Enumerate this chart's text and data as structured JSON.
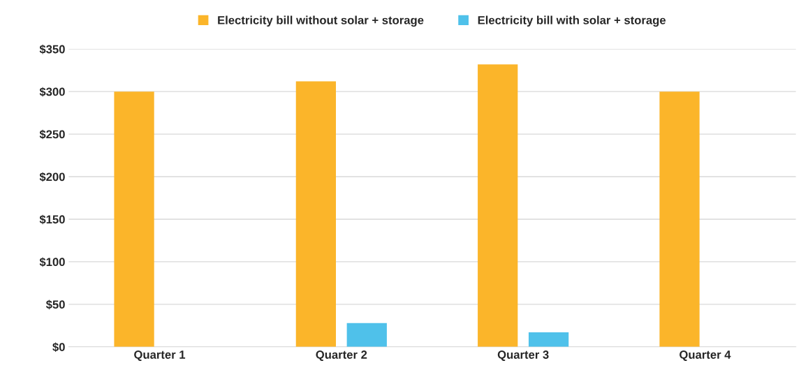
{
  "chart_data": {
    "type": "bar",
    "categories": [
      "Quarter 1",
      "Quarter 2",
      "Quarter 3",
      "Quarter 4"
    ],
    "series": [
      {
        "name": "Electricity bill without solar + storage",
        "color": "#fbb52a",
        "values": [
          300,
          312,
          332,
          300
        ]
      },
      {
        "name": "Electricity bill with solar + storage",
        "color": "#4fc1ea",
        "values": [
          0,
          28,
          17,
          0
        ]
      }
    ],
    "ylim": [
      0,
      350
    ],
    "yticks": [
      {
        "value": 0,
        "label": "$0"
      },
      {
        "value": 50,
        "label": "$50"
      },
      {
        "value": 100,
        "label": "$100"
      },
      {
        "value": 150,
        "label": "$150"
      },
      {
        "value": 200,
        "label": "$200"
      },
      {
        "value": 250,
        "label": "$250"
      },
      {
        "value": 300,
        "label": "$300"
      },
      {
        "value": 350,
        "label": "$350"
      }
    ],
    "grid": "y",
    "legend": "top"
  }
}
